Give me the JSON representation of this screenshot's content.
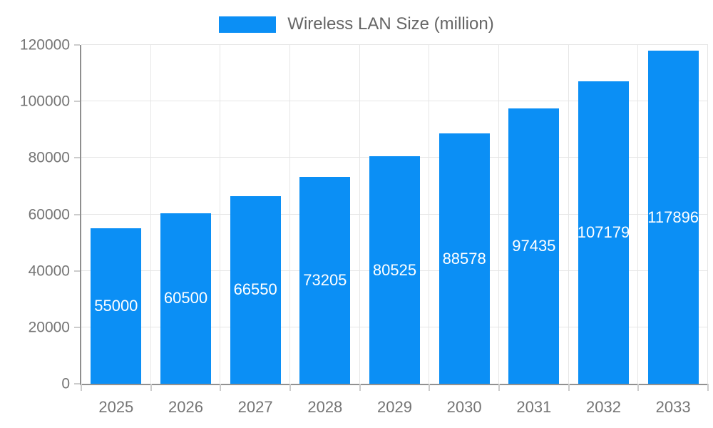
{
  "chart_data": {
    "type": "bar",
    "title": "Wireless LAN Size (million)",
    "categories": [
      "2025",
      "2026",
      "2027",
      "2028",
      "2029",
      "2030",
      "2031",
      "2032",
      "2033"
    ],
    "series": [
      {
        "name": "Wireless LAN Size (million)",
        "values": [
          55000,
          60500,
          66550,
          73205,
          80525,
          88578,
          97435,
          107179,
          117896
        ]
      }
    ],
    "data_labels": [
      "55000",
      "60500",
      "66550",
      "73205",
      "80525",
      "88578",
      "97435",
      "107179",
      "117896"
    ],
    "xlabel": "",
    "ylabel": "",
    "ylim": [
      0,
      120000
    ],
    "ytick_step": 20000,
    "ytick_labels": [
      "0",
      "20000",
      "40000",
      "60000",
      "80000",
      "100000",
      "120000"
    ],
    "grid": true,
    "legend_position": "top",
    "colors": {
      "bar": "#0b8ff5",
      "grid_line": "#e6e6e6",
      "axis_line": "#919191",
      "tick_mark": "#cccccc",
      "tick_text": "#757575",
      "legend_text": "#666666",
      "value_label_text": "#ffffff",
      "background": "#ffffff"
    }
  }
}
